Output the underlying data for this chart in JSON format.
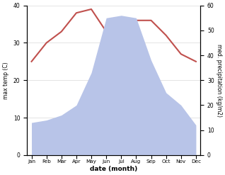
{
  "months": [
    "Jan",
    "Feb",
    "Mar",
    "Apr",
    "May",
    "Jun",
    "Jul",
    "Aug",
    "Sep",
    "Oct",
    "Nov",
    "Dec"
  ],
  "temperature": [
    25,
    30,
    33,
    38,
    39,
    33,
    32,
    36,
    36,
    32,
    27,
    25
  ],
  "precipitation": [
    13,
    14,
    16,
    20,
    33,
    55,
    56,
    55,
    38,
    25,
    20,
    12
  ],
  "temp_color": "#c0504d",
  "precip_fill_color": "#b8c4e8",
  "temp_ylim": [
    0,
    40
  ],
  "precip_ylim": [
    0,
    60
  ],
  "xlabel": "date (month)",
  "ylabel_left": "max temp (C)",
  "ylabel_right": "med. precipitation (kg/m2)",
  "background_color": "#ffffff",
  "grid_color": "#d0d0d0"
}
